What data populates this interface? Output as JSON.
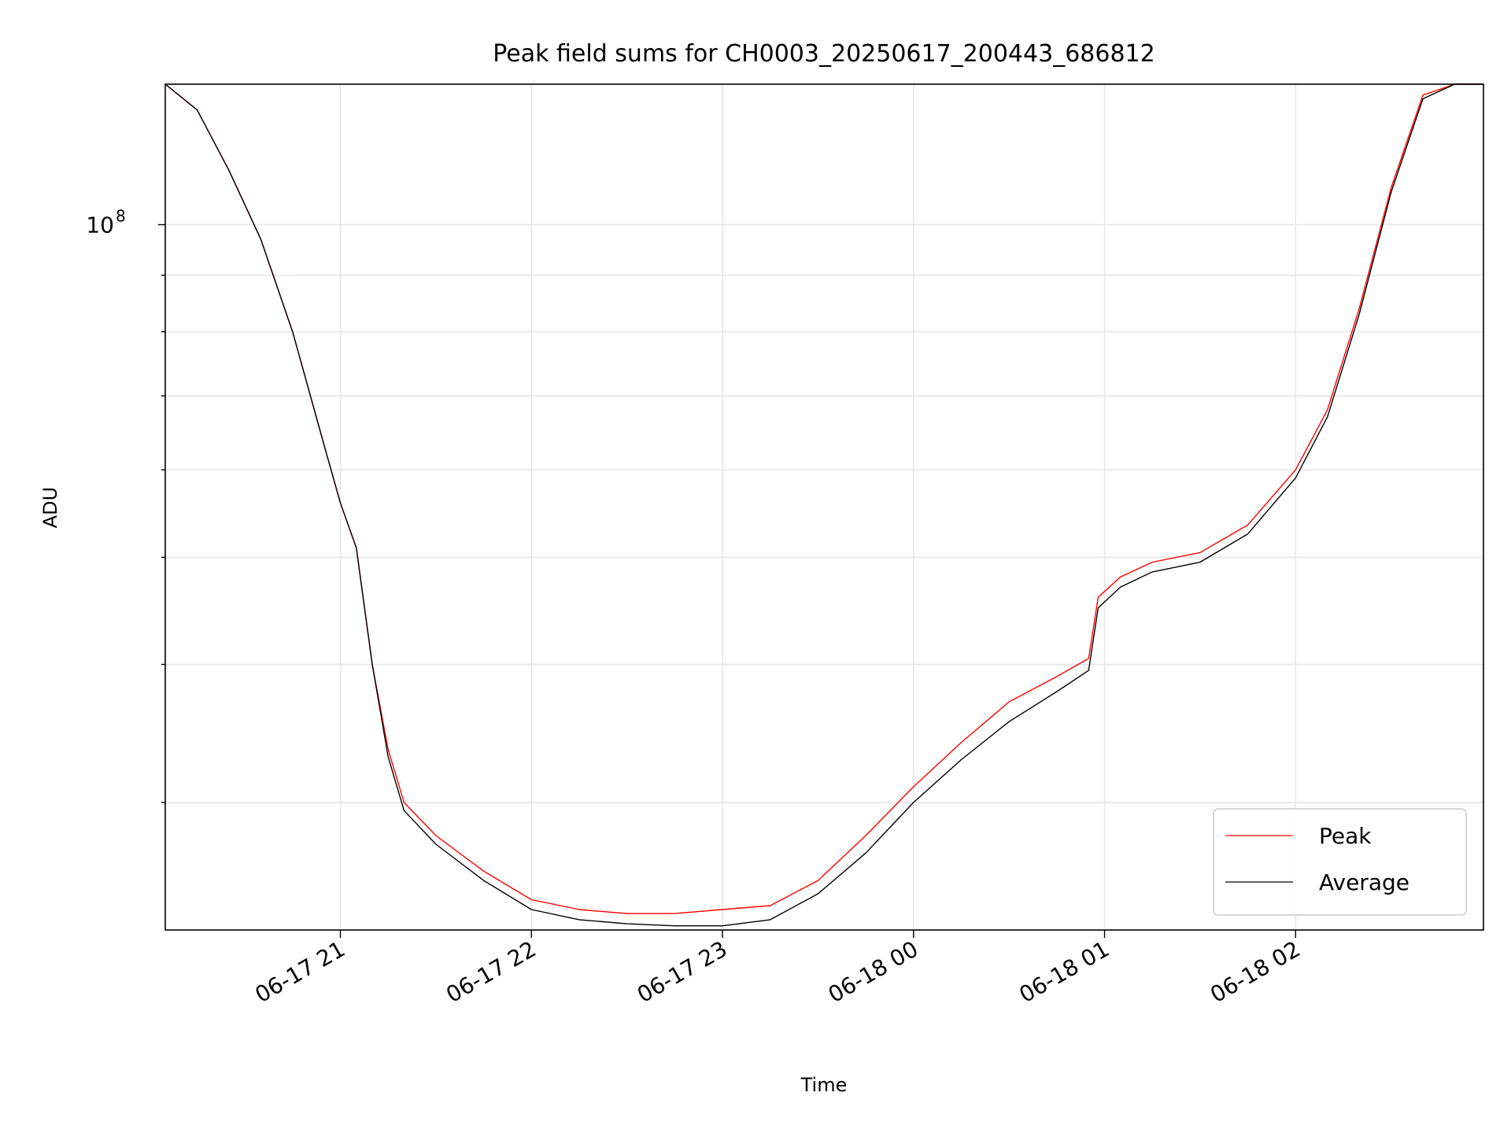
{
  "chart_data": {
    "type": "line",
    "title": "Peak field sums for CH0003_20250617_200443_686812",
    "xlabel": "Time",
    "ylabel": "ADU",
    "y_scale": "log",
    "x_range": [
      "2025-06-17 20:05",
      "2025-06-18 02:59"
    ],
    "ylim": [
      23000000,
      134000000
    ],
    "x_ticks": [
      "06-17 21",
      "06-17 22",
      "06-17 23",
      "06-18 00",
      "06-18 01",
      "06-18 02"
    ],
    "x_tick_times": [
      "2025-06-17 21:00",
      "2025-06-17 22:00",
      "2025-06-17 23:00",
      "2025-06-18 00:00",
      "2025-06-18 01:00",
      "2025-06-18 02:00"
    ],
    "y_major_tick_label_base": "10",
    "y_major_tick_label_exp": "8",
    "y_major_tick_value": 100000000,
    "grid": true,
    "legend_position": "lower right",
    "series": [
      {
        "name": "Peak",
        "color": "#ff0000",
        "points": [
          [
            "2025-06-17 20:05",
            134000000
          ],
          [
            "2025-06-17 20:15",
            127000000
          ],
          [
            "2025-06-17 20:25",
            112000000
          ],
          [
            "2025-06-17 20:35",
            97000000
          ],
          [
            "2025-06-17 20:45",
            80000000
          ],
          [
            "2025-06-17 20:55",
            63000000
          ],
          [
            "2025-06-17 21:00",
            56000000
          ],
          [
            "2025-06-17 21:05",
            51000000
          ],
          [
            "2025-06-17 21:10",
            40000000
          ],
          [
            "2025-06-17 21:15",
            33500000
          ],
          [
            "2025-06-17 21:20",
            30000000
          ],
          [
            "2025-06-17 21:30",
            28000000
          ],
          [
            "2025-06-17 21:45",
            26000000
          ],
          [
            "2025-06-17 22:00",
            24500000
          ],
          [
            "2025-06-17 22:15",
            24000000
          ],
          [
            "2025-06-17 22:30",
            23800000
          ],
          [
            "2025-06-17 22:45",
            23800000
          ],
          [
            "2025-06-17 23:00",
            24000000
          ],
          [
            "2025-06-17 23:15",
            24200000
          ],
          [
            "2025-06-17 23:30",
            25500000
          ],
          [
            "2025-06-17 23:45",
            28000000
          ],
          [
            "2025-06-18 00:00",
            31000000
          ],
          [
            "2025-06-18 00:15",
            34000000
          ],
          [
            "2025-06-18 00:30",
            37000000
          ],
          [
            "2025-06-18 00:45",
            39000000
          ],
          [
            "2025-06-18 00:55",
            40500000
          ],
          [
            "2025-06-18 00:58",
            46000000
          ],
          [
            "2025-06-18 01:05",
            48000000
          ],
          [
            "2025-06-18 01:15",
            49500000
          ],
          [
            "2025-06-18 01:30",
            50500000
          ],
          [
            "2025-06-18 01:45",
            53500000
          ],
          [
            "2025-06-18 02:00",
            60000000
          ],
          [
            "2025-06-18 02:10",
            68000000
          ],
          [
            "2025-06-18 02:20",
            84000000
          ],
          [
            "2025-06-18 02:30",
            108000000
          ],
          [
            "2025-06-18 02:40",
            131000000
          ],
          [
            "2025-06-18 02:50",
            134000000
          ],
          [
            "2025-06-18 02:59",
            134000000
          ]
        ]
      },
      {
        "name": "Average",
        "color": "#000000",
        "points": [
          [
            "2025-06-17 20:05",
            134000000
          ],
          [
            "2025-06-17 20:15",
            127000000
          ],
          [
            "2025-06-17 20:25",
            112000000
          ],
          [
            "2025-06-17 20:35",
            97000000
          ],
          [
            "2025-06-17 20:45",
            80000000
          ],
          [
            "2025-06-17 20:55",
            63000000
          ],
          [
            "2025-06-17 21:00",
            56000000
          ],
          [
            "2025-06-17 21:05",
            51000000
          ],
          [
            "2025-06-17 21:10",
            40000000
          ],
          [
            "2025-06-17 21:15",
            33000000
          ],
          [
            "2025-06-17 21:20",
            29500000
          ],
          [
            "2025-06-17 21:30",
            27500000
          ],
          [
            "2025-06-17 21:45",
            25500000
          ],
          [
            "2025-06-17 22:00",
            24000000
          ],
          [
            "2025-06-17 22:15",
            23500000
          ],
          [
            "2025-06-17 22:30",
            23300000
          ],
          [
            "2025-06-17 22:45",
            23200000
          ],
          [
            "2025-06-17 23:00",
            23200000
          ],
          [
            "2025-06-17 23:15",
            23500000
          ],
          [
            "2025-06-17 23:30",
            24800000
          ],
          [
            "2025-06-17 23:45",
            27000000
          ],
          [
            "2025-06-18 00:00",
            30000000
          ],
          [
            "2025-06-18 00:15",
            32800000
          ],
          [
            "2025-06-18 00:30",
            35500000
          ],
          [
            "2025-06-18 00:45",
            37800000
          ],
          [
            "2025-06-18 00:55",
            39500000
          ],
          [
            "2025-06-18 00:58",
            45000000
          ],
          [
            "2025-06-18 01:05",
            47000000
          ],
          [
            "2025-06-18 01:15",
            48500000
          ],
          [
            "2025-06-18 01:30",
            49500000
          ],
          [
            "2025-06-18 01:45",
            52500000
          ],
          [
            "2025-06-18 02:00",
            59000000
          ],
          [
            "2025-06-18 02:10",
            67000000
          ],
          [
            "2025-06-18 02:20",
            83000000
          ],
          [
            "2025-06-18 02:30",
            107000000
          ],
          [
            "2025-06-18 02:40",
            130000000
          ],
          [
            "2025-06-18 02:50",
            134000000
          ],
          [
            "2025-06-18 02:59",
            134000000
          ]
        ]
      }
    ]
  }
}
